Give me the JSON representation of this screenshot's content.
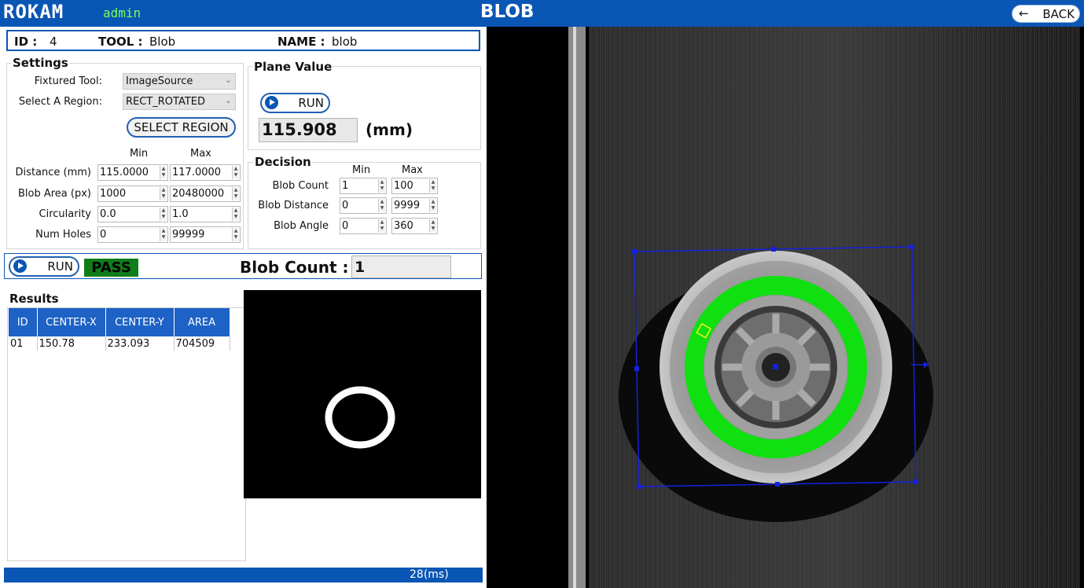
{
  "app": {
    "logo": "ROKAM",
    "user": "admin",
    "title": "BLOB",
    "back_label": "BACK"
  },
  "idbar": {
    "id_label": "ID :",
    "id_value": "4",
    "tool_label": "TOOL :",
    "tool_value": "Blob",
    "name_label": "NAME :",
    "name_value": "blob"
  },
  "settings": {
    "title": "Settings",
    "fixtured_label": "Fixtured Tool:",
    "fixtured_value": "ImageSource",
    "region_label": "Select A Region:",
    "region_value": "RECT_ROTATED",
    "select_region_button": "SELECT REGION",
    "min_header": "Min",
    "max_header": "Max",
    "rows": [
      {
        "label": "Distance (mm)",
        "min": "115.0000",
        "max": "117.0000"
      },
      {
        "label": "Blob Area (px)",
        "min": "1000",
        "max": "20480000"
      },
      {
        "label": "Circularity",
        "min": "0.0",
        "max": "1.0"
      },
      {
        "label": "Num Holes",
        "min": "0",
        "max": "99999"
      }
    ]
  },
  "plane": {
    "title": "Plane Value",
    "run_label": "RUN",
    "value": "115.908",
    "unit": "(mm)"
  },
  "decision": {
    "title": "Decision",
    "min_header": "Min",
    "max_header": "Max",
    "rows": [
      {
        "label": "Blob Count",
        "min": "1",
        "max": "100"
      },
      {
        "label": "Blob Distance",
        "min": "0",
        "max": "9999"
      },
      {
        "label": "Blob Angle",
        "min": "0",
        "max": "360"
      }
    ]
  },
  "run": {
    "run_label": "RUN",
    "status": "PASS",
    "blob_count_label": "Blob Count :",
    "blob_count_value": "1"
  },
  "results": {
    "title": "Results",
    "columns": [
      "ID",
      "CENTER-X",
      "CENTER-Y",
      "AREA"
    ],
    "rows": [
      [
        "01",
        "150.78",
        "233.093",
        "704509"
      ]
    ]
  },
  "status_bar": {
    "time": "28(ms)"
  },
  "colors": {
    "brand_blue": "#0a56b4",
    "pass_green": "#0f7d1a",
    "blob_green": "#10e010",
    "roi_blue": "#1520e0"
  }
}
